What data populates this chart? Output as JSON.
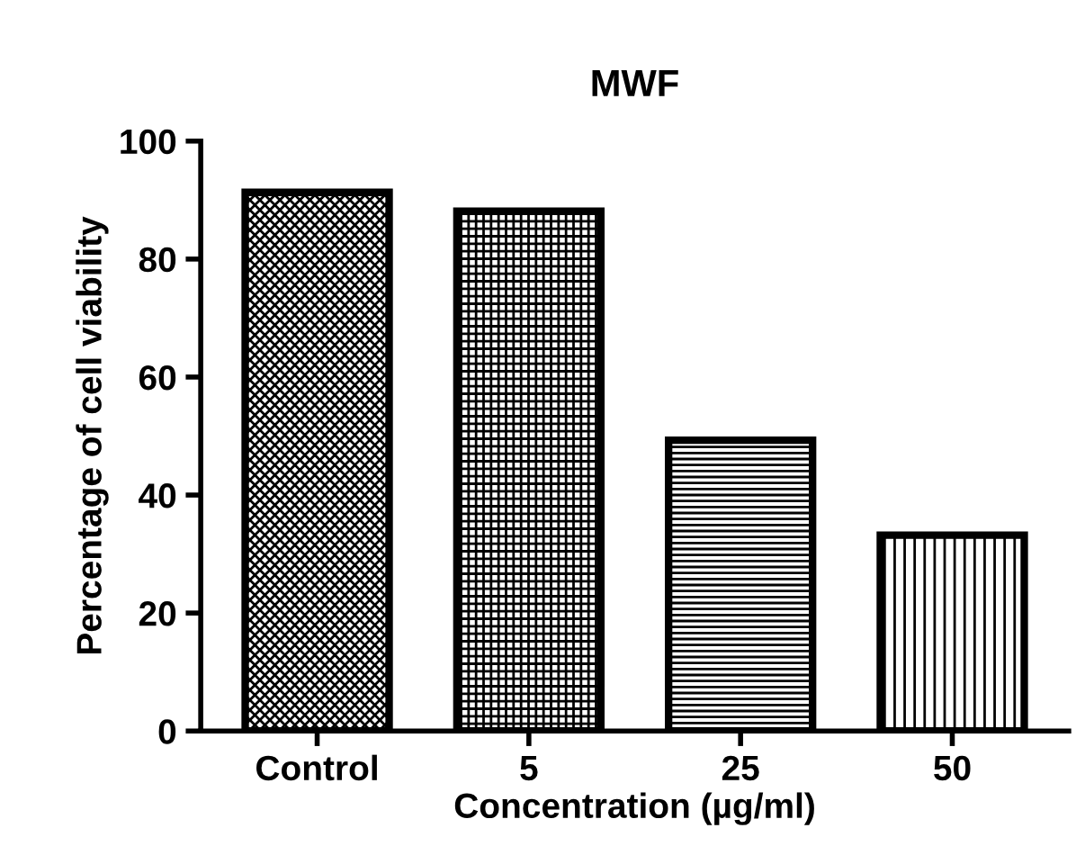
{
  "chart_data": {
    "type": "bar",
    "title": "MWF",
    "xlabel": "Concentration (µg/ml)",
    "ylabel": "Percentage of cell viability",
    "categories": [
      "Control",
      "5",
      "25",
      "50"
    ],
    "values": [
      91.3,
      88.1,
      49.3,
      33.2
    ],
    "colors": [
      "#000000",
      "#000000",
      "#000000",
      "#000000"
    ],
    "ylim": [
      0,
      100
    ],
    "yticks": [
      0,
      20,
      40,
      60,
      80,
      100
    ],
    "grid": false,
    "legend": false
  }
}
